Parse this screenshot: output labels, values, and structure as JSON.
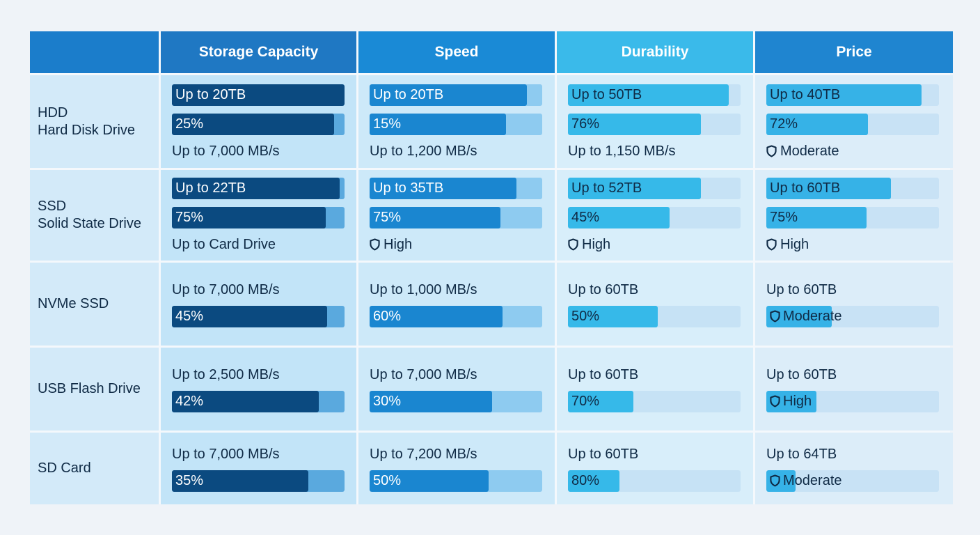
{
  "header": {
    "columns": [
      "",
      "Storage Capacity",
      "Speed",
      "Durability",
      "Price"
    ]
  },
  "colors": {
    "header": [
      "#1b7dcb",
      "#1f78c3",
      "#1a8ad6",
      "#3abaea",
      "#1f85d0"
    ],
    "cell_bg": [
      "#c2e4f8",
      "#cde9f9",
      "#d8eefa",
      "#dcedf9"
    ],
    "bar_fill": [
      "#0b4a80",
      "#1a86d0",
      "#36b9e9",
      "#36b2e7"
    ],
    "bar_track": [
      "#5aa9de",
      "#8ecbf0",
      "#c6e2f5",
      "#c8e2f5"
    ],
    "bar_text": [
      "#ffffff",
      "#ffffff",
      "#0f2a45",
      "#0f2a45"
    ]
  },
  "rows": [
    {
      "label": [
        "HDD",
        "Hard Disk Drive"
      ],
      "cells": [
        [
          {
            "type": "bar",
            "text": "Up to 20TB",
            "fill": 1.0
          },
          {
            "type": "bar",
            "text": "25%",
            "fill": 0.94
          },
          {
            "type": "text",
            "text": "Up to 7,000 MB/s"
          }
        ],
        [
          {
            "type": "bar",
            "text": "Up to 20TB",
            "fill": 0.91
          },
          {
            "type": "bar",
            "text": "15%",
            "fill": 0.79
          },
          {
            "type": "text",
            "text": "Up to 1,200 MB/s"
          }
        ],
        [
          {
            "type": "bar",
            "text": "Up to 50TB",
            "fill": 0.93
          },
          {
            "type": "bar",
            "text": "76%",
            "fill": 0.77
          },
          {
            "type": "text",
            "text": "Up to 1,150 MB/s"
          }
        ],
        [
          {
            "type": "bar",
            "text": "Up to 40TB",
            "fill": 0.9
          },
          {
            "type": "bar",
            "text": "72%",
            "fill": 0.59
          },
          {
            "type": "text",
            "text": "Moderate",
            "icon": "shield-icon"
          }
        ]
      ]
    },
    {
      "label": [
        "SSD",
        "Solid State Drive"
      ],
      "cells": [
        [
          {
            "type": "bar",
            "text": "Up to 22TB",
            "fill": 0.97
          },
          {
            "type": "bar",
            "text": "75%",
            "fill": 0.89
          },
          {
            "type": "text",
            "text": "Up to Card Drive"
          }
        ],
        [
          {
            "type": "bar",
            "text": "Up to 35TB",
            "fill": 0.85
          },
          {
            "type": "bar",
            "text": "75%",
            "fill": 0.76
          },
          {
            "type": "text",
            "text": "High",
            "icon": "shield-icon"
          }
        ],
        [
          {
            "type": "bar",
            "text": "Up to 52TB",
            "fill": 0.77
          },
          {
            "type": "bar",
            "text": "45%",
            "fill": 0.59
          },
          {
            "type": "text",
            "text": "High",
            "icon": "shield-icon"
          }
        ],
        [
          {
            "type": "bar",
            "text": "Up to 60TB",
            "fill": 0.72
          },
          {
            "type": "bar",
            "text": "75%",
            "fill": 0.58
          },
          {
            "type": "text",
            "text": "High",
            "icon": "shield-icon"
          }
        ]
      ]
    },
    {
      "label": [
        "NVMe SSD"
      ],
      "cells": [
        [
          {
            "type": "text",
            "text": "Up to 7,000 MB/s"
          },
          {
            "type": "bar",
            "text": "45%",
            "fill": 0.9
          }
        ],
        [
          {
            "type": "text",
            "text": "Up to 1,000 MB/s"
          },
          {
            "type": "bar",
            "text": "60%",
            "fill": 0.77
          }
        ],
        [
          {
            "type": "text",
            "text": "Up to 60TB"
          },
          {
            "type": "bar",
            "text": "50%",
            "fill": 0.52
          }
        ],
        [
          {
            "type": "text",
            "text": "Up to 60TB"
          },
          {
            "type": "bar",
            "text": "Moderate",
            "icon": "shield-icon",
            "fill": 0.38
          }
        ]
      ]
    },
    {
      "label": [
        "USB Flash Drive"
      ],
      "cells": [
        [
          {
            "type": "text",
            "text": "Up to 2,500 MB/s"
          },
          {
            "type": "bar",
            "text": "42%",
            "fill": 0.85
          }
        ],
        [
          {
            "type": "text",
            "text": "Up to 7,000 MB/s"
          },
          {
            "type": "bar",
            "text": "30%",
            "fill": 0.71
          }
        ],
        [
          {
            "type": "text",
            "text": "Up to 60TB"
          },
          {
            "type": "bar",
            "text": "70%",
            "fill": 0.38
          }
        ],
        [
          {
            "type": "text",
            "text": "Up to 60TB"
          },
          {
            "type": "bar",
            "text": "High",
            "icon": "shield-icon",
            "fill": 0.29
          }
        ]
      ]
    },
    {
      "label": [
        "SD Card"
      ],
      "cells": [
        [
          {
            "type": "text",
            "text": "Up to 7,000 MB/s"
          },
          {
            "type": "bar",
            "text": "35%",
            "fill": 0.79
          }
        ],
        [
          {
            "type": "text",
            "text": "Up to 7,200 MB/s"
          },
          {
            "type": "bar",
            "text": "50%",
            "fill": 0.69
          }
        ],
        [
          {
            "type": "text",
            "text": "Up to 60TB"
          },
          {
            "type": "bar",
            "text": "80%",
            "fill": 0.3
          }
        ],
        [
          {
            "type": "text",
            "text": "Up to 64TB"
          },
          {
            "type": "bar",
            "text": "Moderate",
            "icon": "shield-icon",
            "fill": 0.17
          }
        ]
      ]
    }
  ]
}
